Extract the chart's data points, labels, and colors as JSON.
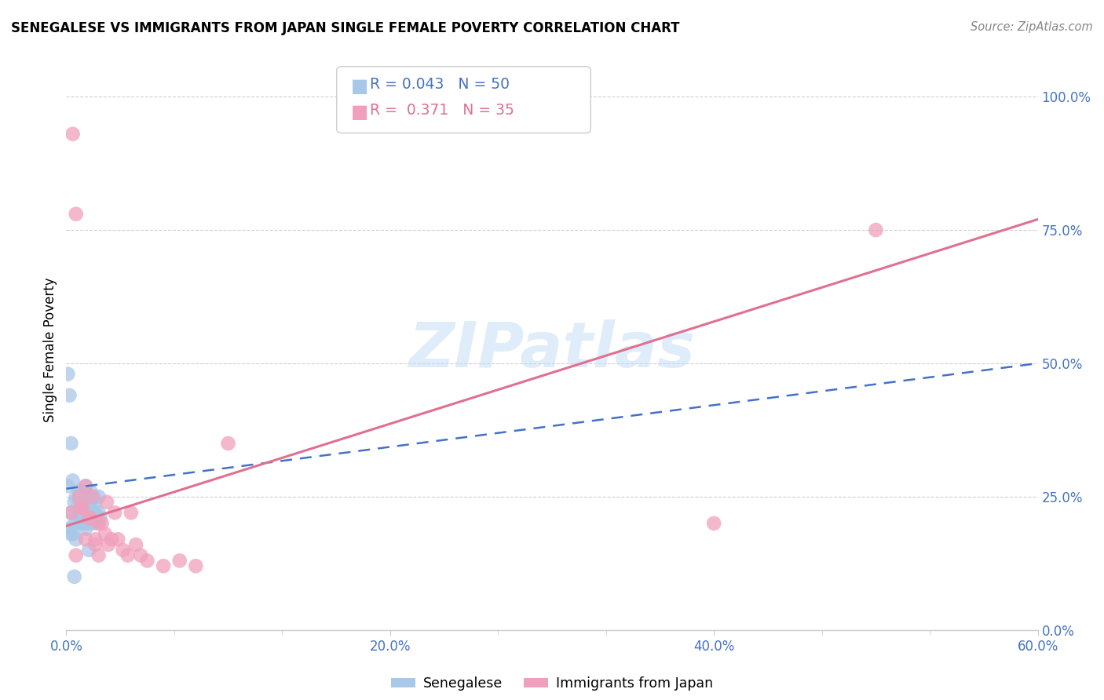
{
  "title": "SENEGALESE VS IMMIGRANTS FROM JAPAN SINGLE FEMALE POVERTY CORRELATION CHART",
  "source": "Source: ZipAtlas.com",
  "ylabel": "Single Female Poverty",
  "xlim": [
    0.0,
    0.6
  ],
  "ylim": [
    0.0,
    1.05
  ],
  "ytick_values": [
    0.0,
    0.25,
    0.5,
    0.75,
    1.0
  ],
  "xtick_values": [
    0.0,
    0.2,
    0.4,
    0.6
  ],
  "senegalese_color": "#a8c8e8",
  "japan_color": "#f0a0bc",
  "senegalese_line_color": "#4472c4",
  "japan_line_color": "#e07090",
  "senegalese_R": 0.043,
  "senegalese_N": 50,
  "japan_R": 0.371,
  "japan_N": 35,
  "watermark": "ZIPatlas",
  "senegalese_x": [
    0.001,
    0.002,
    0.003,
    0.004,
    0.005,
    0.006,
    0.007,
    0.008,
    0.009,
    0.01,
    0.01,
    0.011,
    0.012,
    0.012,
    0.013,
    0.013,
    0.014,
    0.014,
    0.015,
    0.015,
    0.016,
    0.016,
    0.017,
    0.018,
    0.018,
    0.019,
    0.019,
    0.02,
    0.02,
    0.021,
    0.003,
    0.005,
    0.007,
    0.008,
    0.009,
    0.01,
    0.011,
    0.012,
    0.013,
    0.014,
    0.002,
    0.004,
    0.006,
    0.008,
    0.01,
    0.012,
    0.014,
    0.001,
    0.003,
    0.005
  ],
  "senegalese_y": [
    0.27,
    0.44,
    0.35,
    0.28,
    0.24,
    0.25,
    0.23,
    0.26,
    0.22,
    0.26,
    0.25,
    0.24,
    0.27,
    0.23,
    0.25,
    0.22,
    0.23,
    0.21,
    0.26,
    0.24,
    0.22,
    0.2,
    0.25,
    0.24,
    0.22,
    0.21,
    0.2,
    0.25,
    0.22,
    0.21,
    0.22,
    0.2,
    0.21,
    0.22,
    0.21,
    0.2,
    0.22,
    0.21,
    0.2,
    0.22,
    0.19,
    0.18,
    0.17,
    0.22,
    0.2,
    0.19,
    0.15,
    0.48,
    0.18,
    0.1
  ],
  "japan_x": [
    0.004,
    0.006,
    0.008,
    0.01,
    0.012,
    0.014,
    0.016,
    0.018,
    0.02,
    0.022,
    0.024,
    0.026,
    0.028,
    0.03,
    0.032,
    0.035,
    0.038,
    0.04,
    0.043,
    0.046,
    0.05,
    0.06,
    0.07,
    0.08,
    0.1,
    0.003,
    0.006,
    0.009,
    0.012,
    0.015,
    0.4,
    0.5,
    0.018,
    0.02,
    0.025
  ],
  "japan_y": [
    0.93,
    0.78,
    0.25,
    0.23,
    0.27,
    0.21,
    0.25,
    0.17,
    0.2,
    0.2,
    0.18,
    0.16,
    0.17,
    0.22,
    0.17,
    0.15,
    0.14,
    0.22,
    0.16,
    0.14,
    0.13,
    0.12,
    0.13,
    0.12,
    0.35,
    0.22,
    0.14,
    0.23,
    0.17,
    0.21,
    0.2,
    0.75,
    0.16,
    0.14,
    0.24
  ]
}
